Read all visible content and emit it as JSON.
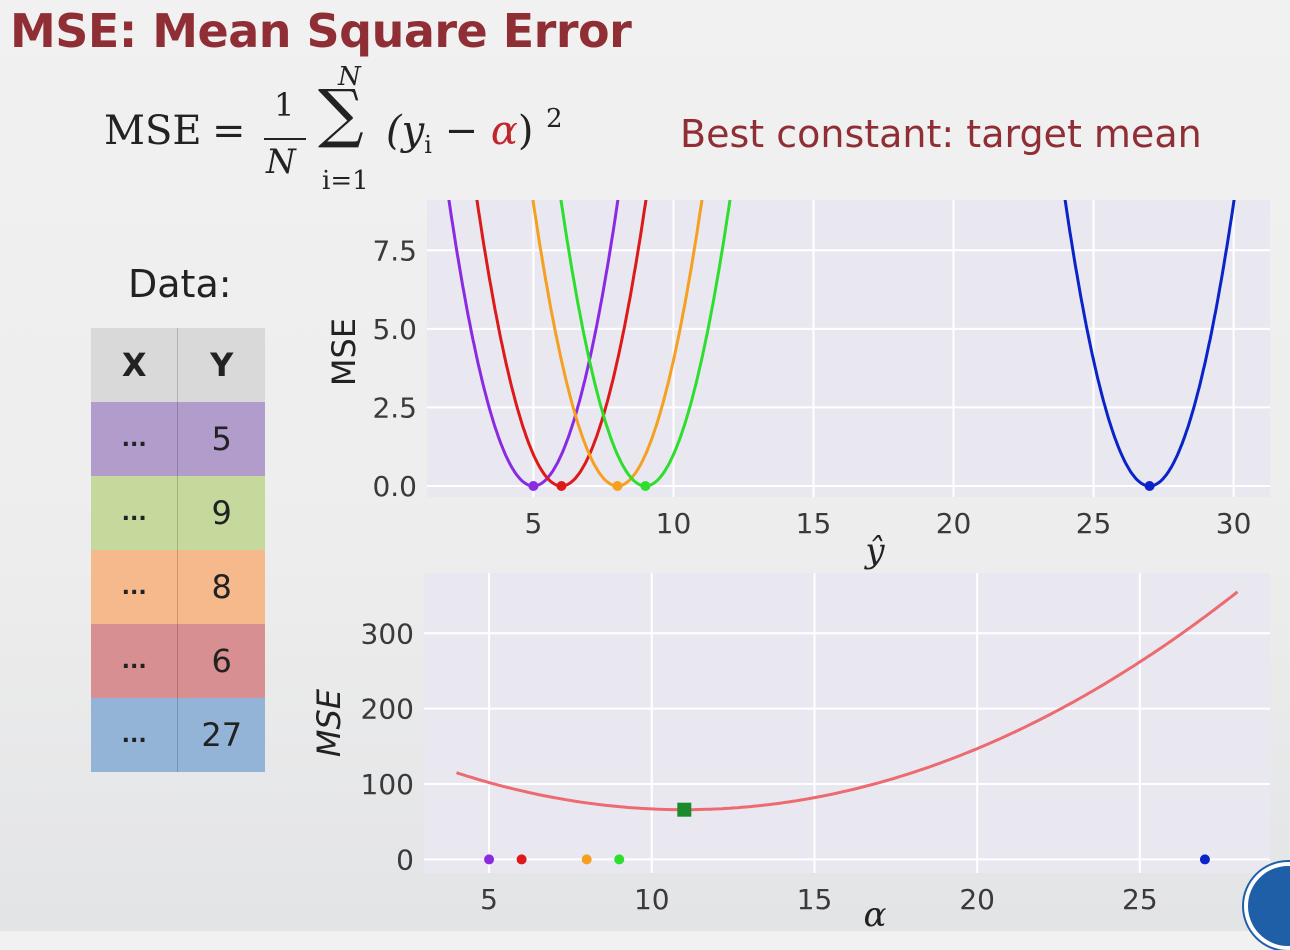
{
  "title": "MSE: Mean Square Error",
  "formula": {
    "lhs": "MSE",
    "eq": "=",
    "frac_num": "1",
    "frac_den": "N",
    "sum_upper": "N",
    "sum_lower": "i=1",
    "sum_symbol": "∑",
    "term_open": "(y",
    "term_sub": "i",
    "term_minus": " − ",
    "term_alpha": "α",
    "term_close": ")",
    "power": "2"
  },
  "best_constant": "Best constant:  target mean",
  "data": {
    "label": "Data:",
    "headers": [
      "X",
      "Y"
    ],
    "rows": [
      {
        "x": "...",
        "y": "5",
        "color": "#b29ccb"
      },
      {
        "x": "...",
        "y": "9",
        "color": "#c5d99c"
      },
      {
        "x": "...",
        "y": "8",
        "color": "#f5b98c"
      },
      {
        "x": "...",
        "y": "6",
        "color": "#d88f91"
      },
      {
        "x": "...",
        "y": "27",
        "color": "#93b4d7"
      }
    ]
  },
  "chart_data": [
    {
      "type": "line",
      "xlabel": "ŷ",
      "ylabel": "MSE",
      "xlim": [
        1.2,
        31.3
      ],
      "ylim": [
        -0.35,
        9.1
      ],
      "xticks": [
        5,
        10,
        15,
        20,
        25,
        30
      ],
      "yticks": [
        0.0,
        2.5,
        5.0,
        7.5
      ],
      "ytick_labels": [
        "0.0",
        "2.5",
        "5.0",
        "7.5"
      ],
      "grid": true,
      "background": "#e9e8f0",
      "series": [
        {
          "center": 5,
          "color": "#8a2be2",
          "formula": "(ŷ − 5)²"
        },
        {
          "center": 6,
          "color": "#dd1a1a",
          "formula": "(ŷ − 6)²"
        },
        {
          "center": 8,
          "color": "#f5a020",
          "formula": "(ŷ − 8)²"
        },
        {
          "center": 9,
          "color": "#2ede2e",
          "formula": "(ŷ − 9)²"
        },
        {
          "center": 27,
          "color": "#0a24c8",
          "formula": "(ŷ − 27)²"
        }
      ]
    },
    {
      "type": "line",
      "xlabel": "α",
      "ylabel": "MSE",
      "xlim": [
        3.0,
        29.0
      ],
      "ylim": [
        -18,
        380
      ],
      "xticks": [
        5,
        10,
        15,
        20,
        25
      ],
      "yticks": [
        0,
        100,
        200,
        300
      ],
      "grid": true,
      "background": "#e9e8f0",
      "curve": {
        "color": "#ec6a70",
        "formula": "mean over y in {5,9,8,6,27} of (y − α)²",
        "x_range": [
          4,
          28
        ]
      },
      "points": [
        {
          "x": 5,
          "y": 0,
          "color": "#8a2be2"
        },
        {
          "x": 6,
          "y": 0,
          "color": "#dd1a1a"
        },
        {
          "x": 8,
          "y": 0,
          "color": "#f5a020"
        },
        {
          "x": 9,
          "y": 0,
          "color": "#2ede2e"
        },
        {
          "x": 27,
          "y": 0,
          "color": "#0a24c8"
        }
      ],
      "minimum": {
        "x": 11,
        "y": 66,
        "color": "#1a8a2a",
        "marker": "square"
      }
    }
  ]
}
